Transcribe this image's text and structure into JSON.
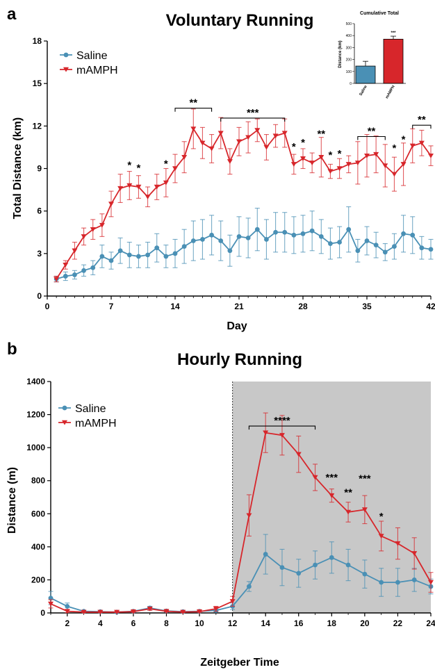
{
  "panels": {
    "a": {
      "letter": "a"
    },
    "b": {
      "letter": "b"
    }
  },
  "colors": {
    "saline": "#4a90b5",
    "mamph": "#d7262b",
    "night_shade": "#c8c8c8",
    "axis": "#000000"
  },
  "chart_data": [
    {
      "id": "voluntary",
      "type": "line",
      "title": "Voluntary Running",
      "xlabel": "Day",
      "ylabel": "Total Distance (km)",
      "xlim": [
        0,
        42
      ],
      "ylim": [
        0,
        18
      ],
      "xticks": [
        "0",
        "7",
        "14",
        "21",
        "28",
        "35",
        "42"
      ],
      "yticks": [
        "0",
        "3",
        "6",
        "9",
        "12",
        "15",
        "18"
      ],
      "legend": [
        "Saline",
        "mAMPH"
      ],
      "legend_position": "top-left",
      "grid": false,
      "x": [
        1,
        2,
        3,
        4,
        5,
        6,
        7,
        8,
        9,
        10,
        11,
        12,
        13,
        14,
        15,
        16,
        17,
        18,
        19,
        20,
        21,
        22,
        23,
        24,
        25,
        26,
        27,
        28,
        29,
        30,
        31,
        32,
        33,
        34,
        35,
        36,
        37,
        38,
        39,
        40,
        41,
        42
      ],
      "series": [
        {
          "name": "Saline",
          "marker": "circle",
          "values": [
            1.2,
            1.4,
            1.5,
            1.8,
            2.0,
            2.8,
            2.5,
            3.2,
            2.9,
            2.8,
            2.9,
            3.4,
            2.8,
            3.0,
            3.5,
            3.9,
            4.0,
            4.3,
            3.9,
            3.2,
            4.2,
            4.1,
            4.7,
            4.0,
            4.5,
            4.5,
            4.3,
            4.4,
            4.6,
            4.2,
            3.7,
            3.8,
            4.7,
            3.2,
            3.9,
            3.6,
            3.1,
            3.5,
            4.4,
            4.3,
            3.4,
            3.3
          ],
          "errors": [
            0.2,
            0.3,
            0.3,
            0.4,
            0.5,
            0.8,
            0.6,
            0.9,
            0.9,
            0.8,
            0.9,
            1.0,
            0.8,
            1.0,
            1.2,
            1.4,
            1.4,
            1.4,
            1.4,
            1.1,
            1.4,
            1.4,
            1.5,
            1.4,
            1.4,
            1.4,
            1.3,
            1.3,
            1.4,
            1.2,
            1.1,
            1.1,
            1.6,
            0.8,
            1.0,
            0.9,
            0.6,
            0.9,
            1.3,
            1.3,
            0.8,
            0.7
          ]
        },
        {
          "name": "mAMPH",
          "marker": "triangle-down",
          "values": [
            1.2,
            2.2,
            3.2,
            4.2,
            4.7,
            5.0,
            6.5,
            7.6,
            7.8,
            7.7,
            7.0,
            7.7,
            8.0,
            9.0,
            9.8,
            11.8,
            10.8,
            10.4,
            11.5,
            9.5,
            10.9,
            11.2,
            11.7,
            10.5,
            11.3,
            11.5,
            9.3,
            9.7,
            9.4,
            9.8,
            8.8,
            9.0,
            9.3,
            9.4,
            9.9,
            10.0,
            9.2,
            8.6,
            9.3,
            10.6,
            10.8,
            9.9
          ]
        },
        {
          "name": "mAMPH_errors",
          "values": [
            0.2,
            0.3,
            0.6,
            0.6,
            0.7,
            0.8,
            0.9,
            1.0,
            1.0,
            0.8,
            0.7,
            0.9,
            1.0,
            1.0,
            1.1,
            1.4,
            1.1,
            1.0,
            1.1,
            0.9,
            1.0,
            1.1,
            0.8,
            0.9,
            0.8,
            1.0,
            0.7,
            0.7,
            0.7,
            1.4,
            0.5,
            0.7,
            0.6,
            1.5,
            1.5,
            1.3,
            1.5,
            1.2,
            1.5,
            1.2,
            0.9,
            0.7
          ]
        }
      ],
      "annotations": [
        {
          "text": "*",
          "x": 9,
          "y": 9.2
        },
        {
          "text": "*",
          "x": 10,
          "y": 9.0
        },
        {
          "text": "*",
          "x": 13,
          "y": 9.3
        },
        {
          "text": "**",
          "x": 16,
          "y": 13.6,
          "bracket": [
            14,
            18
          ]
        },
        {
          "text": "***",
          "x": 22.5,
          "y": 12.9,
          "bracket": [
            19,
            26
          ]
        },
        {
          "text": "*",
          "x": 27,
          "y": 10.5
        },
        {
          "text": "*",
          "x": 28,
          "y": 10.8
        },
        {
          "text": "**",
          "x": 30,
          "y": 11.4
        },
        {
          "text": "*",
          "x": 31,
          "y": 9.9
        },
        {
          "text": "*",
          "x": 32,
          "y": 10.0
        },
        {
          "text": "**",
          "x": 35.5,
          "y": 11.6,
          "bracket": [
            34,
            37
          ]
        },
        {
          "text": "*",
          "x": 38,
          "y": 10.4
        },
        {
          "text": "*",
          "x": 39,
          "y": 11.0
        },
        {
          "text": "**",
          "x": 41,
          "y": 12.4,
          "bracket": [
            40,
            42
          ]
        }
      ]
    },
    {
      "id": "cumulative",
      "type": "bar",
      "title": "Cumulative Total",
      "xlabel": "",
      "ylabel": "Distance (km)",
      "categories": [
        "Saline",
        "mAMPH"
      ],
      "values": [
        145,
        370
      ],
      "errors": [
        40,
        25
      ],
      "ylim": [
        0,
        500
      ],
      "yticks": [
        "0",
        "100",
        "200",
        "300",
        "400",
        "500"
      ],
      "annotations": [
        {
          "text": "***",
          "category": "mAMPH"
        }
      ]
    },
    {
      "id": "hourly",
      "type": "line",
      "title": "Hourly Running",
      "xlabel": "Zeitgeber Time",
      "ylabel": "Distance (m)",
      "xlim": [
        1,
        24
      ],
      "ylim": [
        0,
        1400
      ],
      "xticks": [
        "2",
        "4",
        "6",
        "8",
        "10",
        "12",
        "14",
        "16",
        "18",
        "20",
        "22",
        "24"
      ],
      "yticks": [
        "0",
        "200",
        "400",
        "600",
        "800",
        "1000",
        "1200",
        "1400"
      ],
      "legend": [
        "Saline",
        "mAMPH"
      ],
      "legend_position": "top-left",
      "grid": false,
      "shaded_region": [
        12,
        24
      ],
      "x": [
        1,
        2,
        3,
        4,
        5,
        6,
        7,
        8,
        9,
        10,
        11,
        12,
        13,
        14,
        15,
        16,
        17,
        18,
        19,
        20,
        21,
        22,
        23,
        24
      ],
      "series": [
        {
          "name": "Saline",
          "marker": "circle",
          "values": [
            90,
            40,
            10,
            8,
            5,
            10,
            30,
            12,
            8,
            10,
            15,
            40,
            160,
            355,
            275,
            240,
            290,
            335,
            290,
            235,
            185,
            185,
            200,
            160
          ],
          "errors": [
            40,
            20,
            5,
            4,
            3,
            5,
            10,
            6,
            4,
            5,
            8,
            20,
            30,
            120,
            110,
            85,
            85,
            95,
            95,
            85,
            85,
            85,
            70,
            45
          ]
        },
        {
          "name": "mAMPH",
          "marker": "triangle-down",
          "values": [
            55,
            10,
            5,
            5,
            5,
            8,
            25,
            10,
            5,
            8,
            25,
            70,
            590,
            1090,
            1075,
            960,
            820,
            710,
            610,
            625,
            465,
            420,
            360,
            185
          ],
          "errors": [
            25,
            8,
            3,
            3,
            3,
            5,
            10,
            5,
            3,
            5,
            15,
            30,
            125,
            120,
            120,
            110,
            80,
            40,
            60,
            85,
            90,
            95,
            95,
            60
          ]
        }
      ],
      "annotations": [
        {
          "text": "****",
          "x": 15,
          "y": 1160,
          "bracket": [
            13,
            17
          ]
        },
        {
          "text": "***",
          "x": 18,
          "y": 815
        },
        {
          "text": "**",
          "x": 19,
          "y": 725
        },
        {
          "text": "***",
          "x": 20,
          "y": 810
        },
        {
          "text": "*",
          "x": 21,
          "y": 580
        }
      ]
    }
  ]
}
